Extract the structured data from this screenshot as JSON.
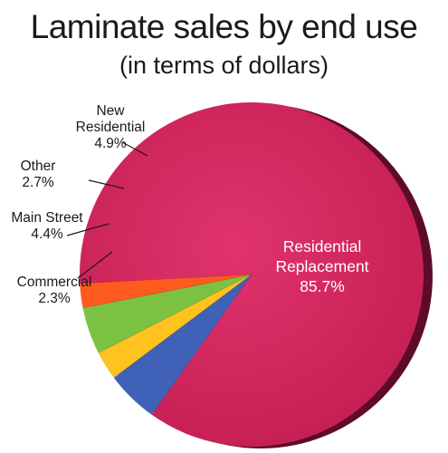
{
  "chart_data": {
    "type": "pie",
    "title": "Laminate sales by end use",
    "subtitle": "(in terms of dollars)",
    "unit": "%",
    "slices": [
      {
        "label": "Residential Replacement",
        "label_lines": [
          "Residential",
          "Replacement"
        ],
        "value": 85.7,
        "value_text": "85.7%",
        "color": "#d6275e",
        "label_position": "inside"
      },
      {
        "label": "Commercial",
        "label_lines": [
          "Commercial"
        ],
        "value": 2.3,
        "value_text": "2.3%",
        "color": "#ff5a1f",
        "label_position": "outside"
      },
      {
        "label": "Main Street",
        "label_lines": [
          "Main Street"
        ],
        "value": 4.4,
        "value_text": "4.4%",
        "color": "#7cc242",
        "label_position": "outside"
      },
      {
        "label": "Other",
        "label_lines": [
          "Other"
        ],
        "value": 2.7,
        "value_text": "2.7%",
        "color": "#ffc31f",
        "label_position": "outside"
      },
      {
        "label": "New Residential",
        "label_lines": [
          "New",
          "Residential"
        ],
        "value": 4.9,
        "value_text": "4.9%",
        "color": "#3f62b8",
        "label_position": "outside"
      }
    ],
    "depth_color": "#5e0b29"
  }
}
